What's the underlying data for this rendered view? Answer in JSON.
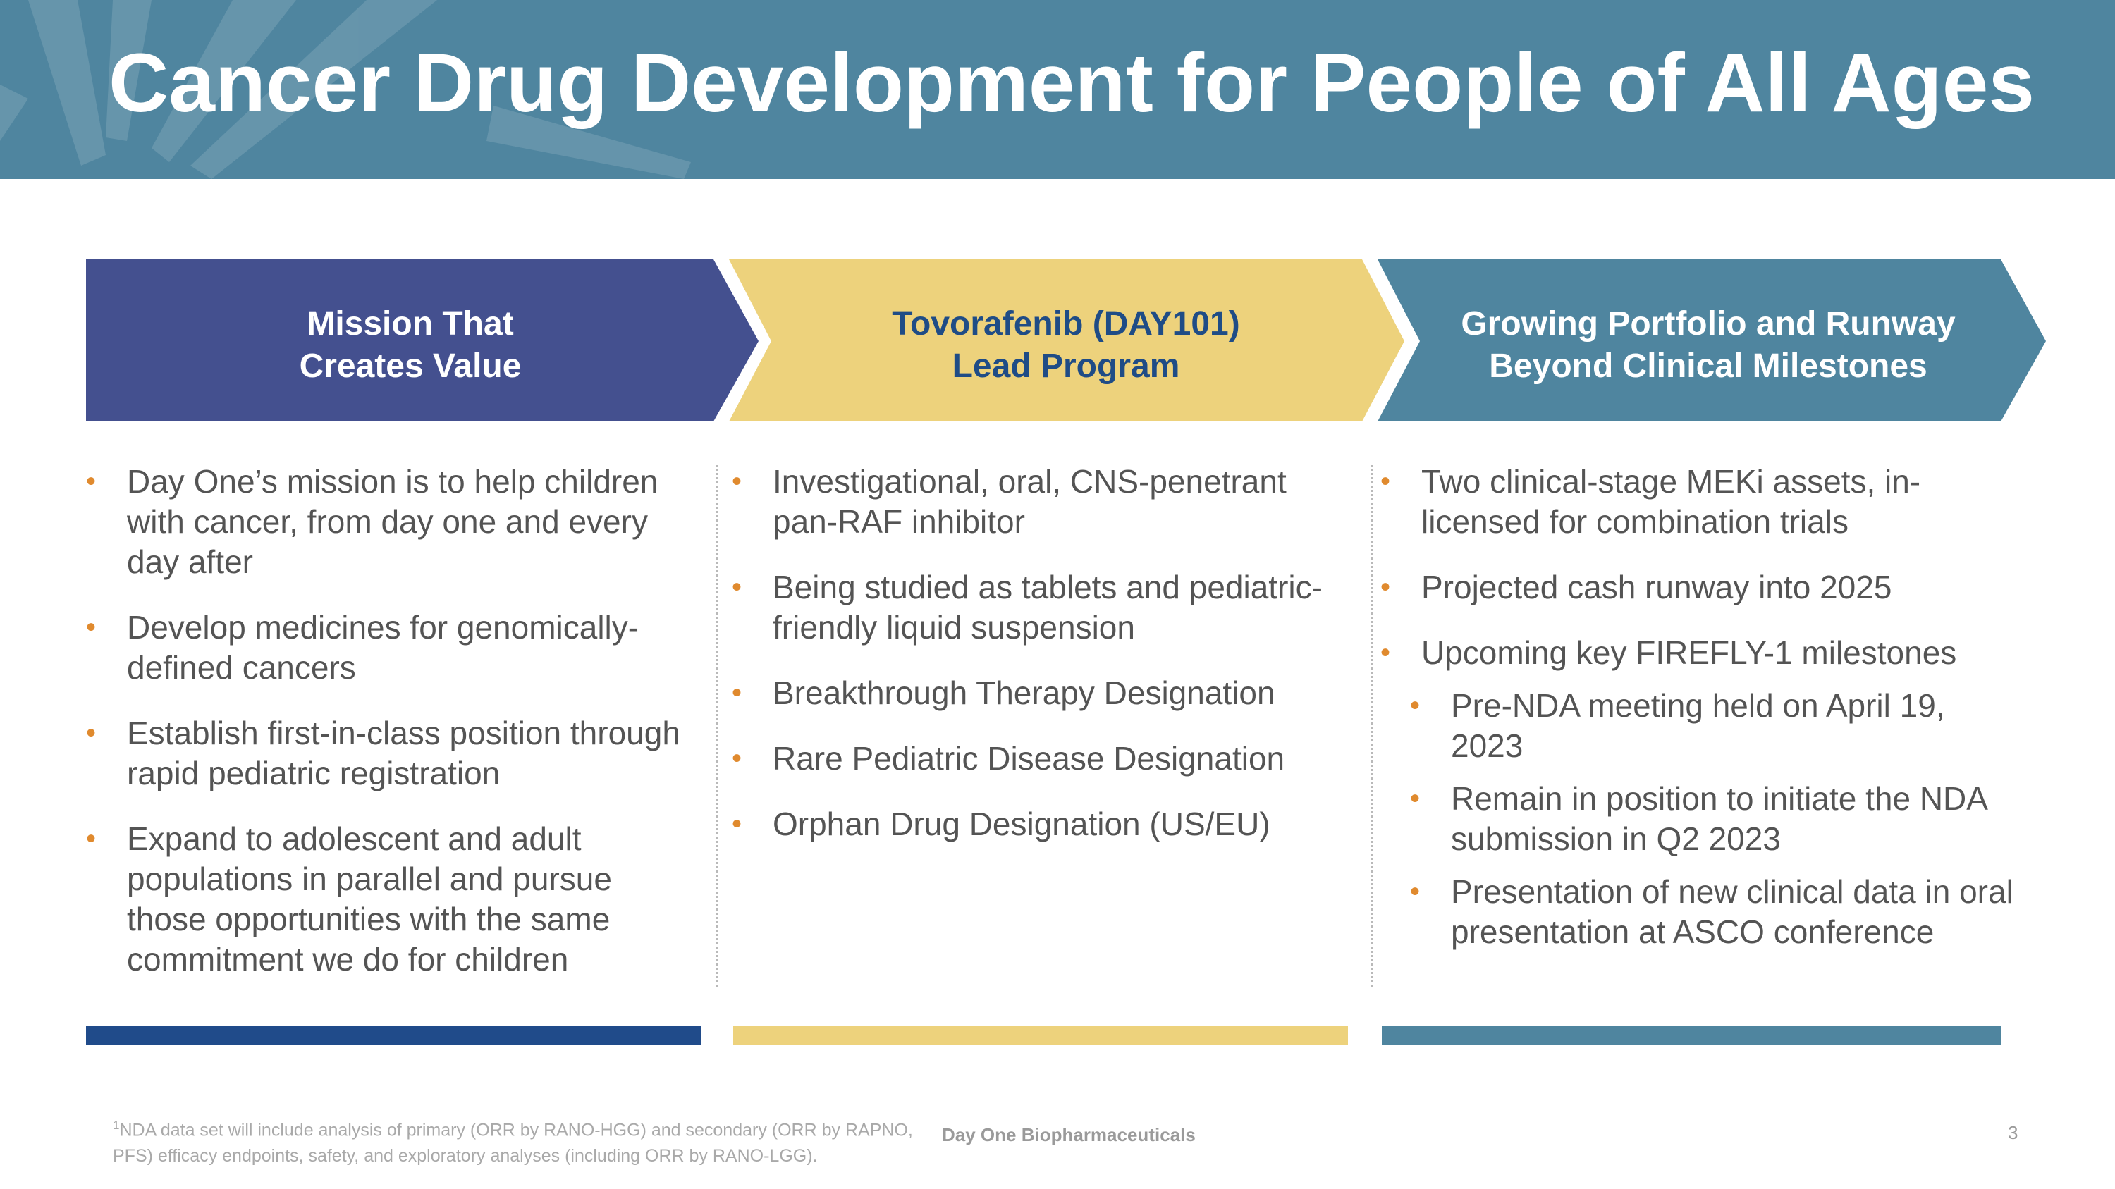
{
  "header": {
    "title": "Cancer Drug Development for People of All Ages",
    "bg_color": "#4f859f"
  },
  "columns": [
    {
      "heading_line1": "Mission That",
      "heading_line2": "Creates Value",
      "chevron_color": "#44508f",
      "heading_color": "#ffffff",
      "bar_color": "#204b8a",
      "bullets": [
        {
          "text": "Day One’s mission is to help children with cancer, from day one and every day after"
        },
        {
          "text": "Develop medicines for genomically-defined cancers"
        },
        {
          "text": "Establish first-in-class position through rapid pediatric registration"
        },
        {
          "text": "Expand to adolescent and adult populations in parallel and pursue those opportunities with the same commitment we do for children"
        }
      ]
    },
    {
      "heading_line1": "Tovorafenib (DAY101)",
      "heading_line2": "Lead Program",
      "chevron_color": "#edd27c",
      "heading_color": "#1f4c86",
      "bar_color": "#edd27c",
      "bullets": [
        {
          "text": "Investigational, oral, CNS-penetrant pan-RAF inhibitor"
        },
        {
          "text": "Being studied as tablets and pediatric-friendly liquid suspension"
        },
        {
          "text": "Breakthrough Therapy Designation"
        },
        {
          "text": "Rare Pediatric Disease Designation"
        },
        {
          "text": "Orphan Drug Designation (US/EU)"
        }
      ]
    },
    {
      "heading_line1": "Growing Portfolio and Runway",
      "heading_line2": "Beyond Clinical Milestones",
      "chevron_color": "#4f859f",
      "heading_color": "#ffffff",
      "bar_color": "#4f859f",
      "bullets": [
        {
          "text": "Two clinical-stage MEKi assets, in-licensed for combination trials"
        },
        {
          "text": "Projected cash runway into 2025"
        },
        {
          "text": "Upcoming key FIREFLY-1 milestones"
        }
      ],
      "sub_bullets": [
        {
          "text": "Pre-NDA meeting held on April 19, 2023"
        },
        {
          "text": "Remain in position to initiate the NDA submission in Q2 2023"
        },
        {
          "text": "Presentation of new clinical data in oral presentation at ASCO conference"
        }
      ]
    }
  ],
  "bullet_color": "#e08a2e",
  "bullet_glyph": "•",
  "footer": {
    "footnote_marker": "1",
    "footnote": "NDA data set will include analysis of primary (ORR by RANO-HGG) and secondary (ORR by RAPNO, PFS) efficacy endpoints, safety, and exploratory analyses (including ORR by RANO-LGG).",
    "company": "Day One Biopharmaceuticals",
    "page_number": "3"
  }
}
